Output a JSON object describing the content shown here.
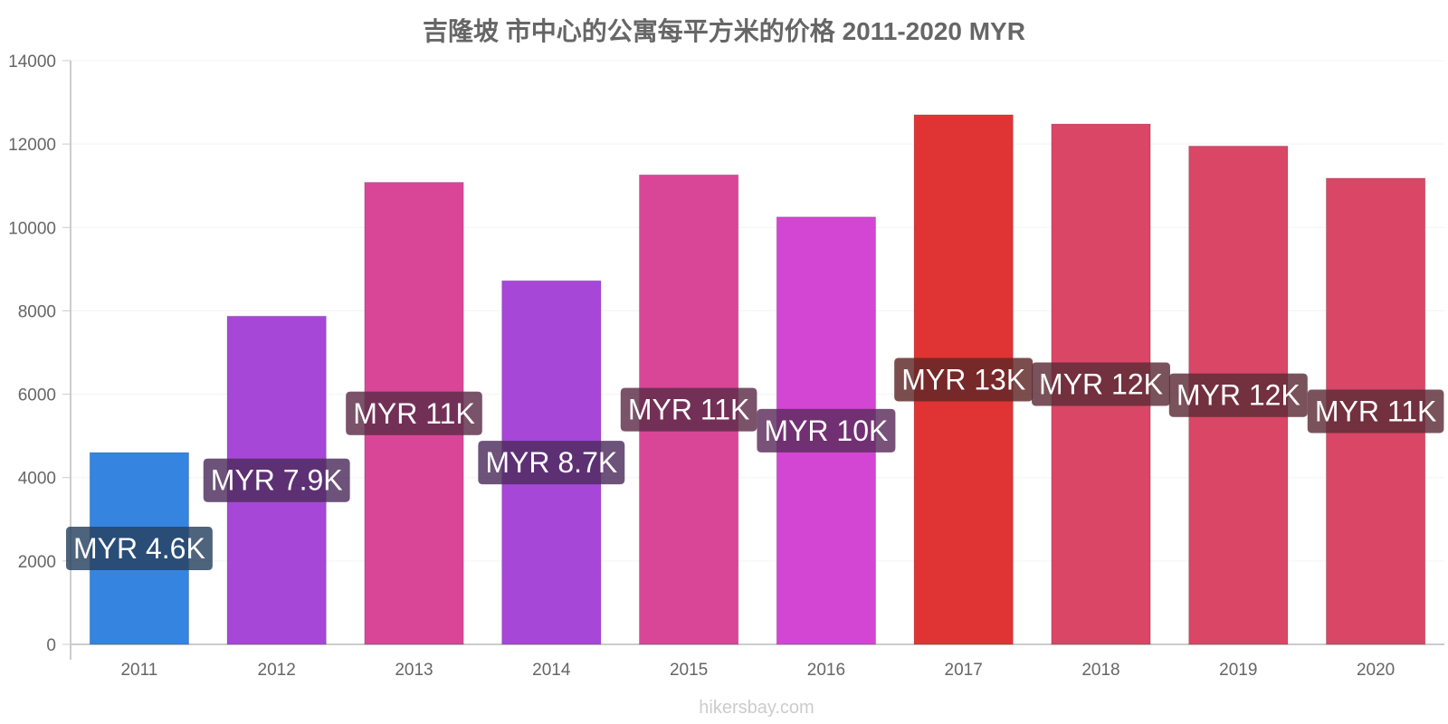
{
  "chart_data": {
    "type": "bar",
    "title": "吉隆坡 市中心的公寓每平方米的价格 2011-2020 MYR",
    "xlabel": "",
    "ylabel": "",
    "ylim": [
      0,
      14000
    ],
    "y_ticks": [
      "0",
      "2000",
      "4000",
      "6000",
      "8000",
      "10000",
      "12000",
      "14000"
    ],
    "y_tick_values": [
      0,
      2000,
      4000,
      6000,
      8000,
      10000,
      12000,
      14000
    ],
    "grid": true,
    "legend": "none",
    "categories": [
      "2011",
      "2012",
      "2013",
      "2014",
      "2015",
      "2016",
      "2017",
      "2018",
      "2019",
      "2020"
    ],
    "values": [
      4600,
      7870,
      11080,
      8720,
      11260,
      10250,
      12700,
      12480,
      11950,
      11180
    ],
    "data_labels": [
      "MYR 4.6K",
      "MYR 7.9K",
      "MYR 11K",
      "MYR 8.7K",
      "MYR 11K",
      "MYR 10K",
      "MYR 13K",
      "MYR 12K",
      "MYR 12K",
      "MYR 11K"
    ],
    "colors": [
      "#3584e0",
      "#a647d8",
      "#d94698",
      "#a647d8",
      "#d94698",
      "#d346d3",
      "#e03434",
      "#d94666",
      "#d94666",
      "#d94666"
    ],
    "label_box_colors": [
      "#1b4170",
      "#53236c",
      "#6c234c",
      "#53236c",
      "#6c234c",
      "#692369",
      "#701a1a",
      "#6c2333",
      "#6c2333",
      "#6c2333"
    ]
  },
  "watermark": "hikersbay.com"
}
